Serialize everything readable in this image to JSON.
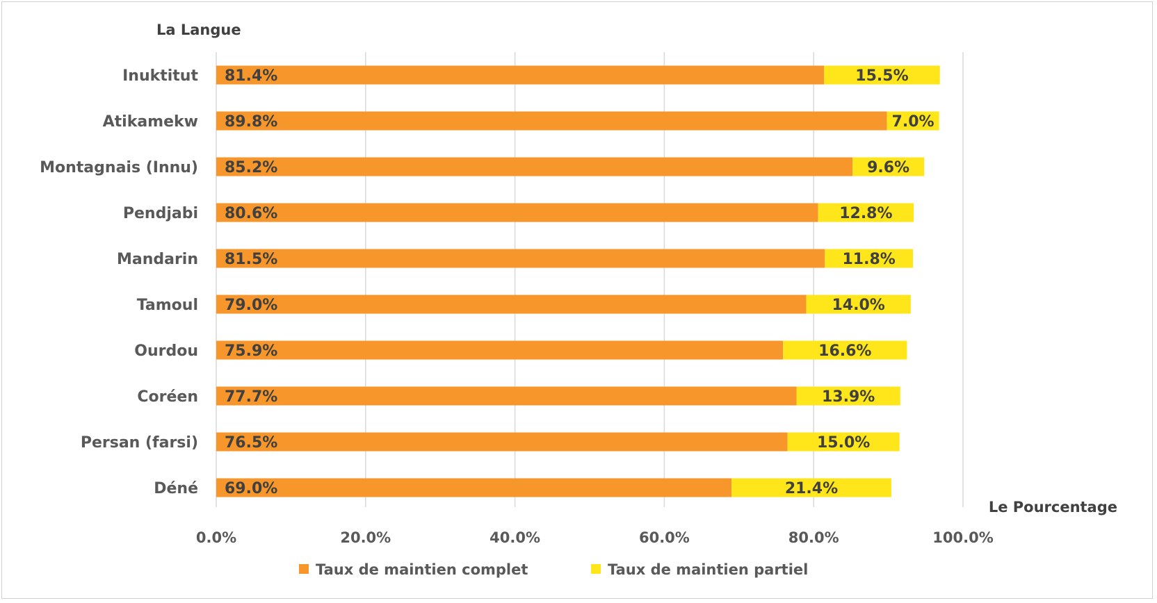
{
  "chart_data": {
    "type": "bar",
    "orientation": "horizontal",
    "stacked": true,
    "ylabel": "La Langue",
    "xlabel": "Le Pourcentage",
    "xlim": [
      0,
      100
    ],
    "xticks": [
      0,
      20,
      40,
      60,
      80,
      100
    ],
    "xtick_labels": [
      "0.0%",
      "20.0%",
      "40.0%",
      "60.0%",
      "80.0%",
      "100.0%"
    ],
    "grid": true,
    "legend_position": "bottom",
    "categories": [
      "Inuktitut",
      "Atikamekw",
      "Montagnais (Innu)",
      "Pendjabi",
      "Mandarin",
      "Tamoul",
      "Ourdou",
      "Coréen",
      "Persan (farsi)",
      "Déné"
    ],
    "series": [
      {
        "name": "Taux de maintien complet",
        "color": "#f7962a",
        "values": [
          81.4,
          89.8,
          85.2,
          80.6,
          81.5,
          79.0,
          75.9,
          77.7,
          76.5,
          69.0
        ],
        "labels": [
          "81.4%",
          "89.8%",
          "85.2%",
          "80.6%",
          "81.5%",
          "79.0%",
          "75.9%",
          "77.7%",
          "76.5%",
          "69.0%"
        ]
      },
      {
        "name": "Taux de maintien partiel",
        "color": "#ffe61a",
        "values": [
          15.5,
          7.0,
          9.6,
          12.8,
          11.8,
          14.0,
          16.6,
          13.9,
          15.0,
          21.4
        ],
        "labels": [
          "15.5%",
          "7.0%",
          "9.6%",
          "12.8%",
          "11.8%",
          "14.0%",
          "16.6%",
          "13.9%",
          "15.0%",
          "21.4%"
        ]
      }
    ]
  }
}
